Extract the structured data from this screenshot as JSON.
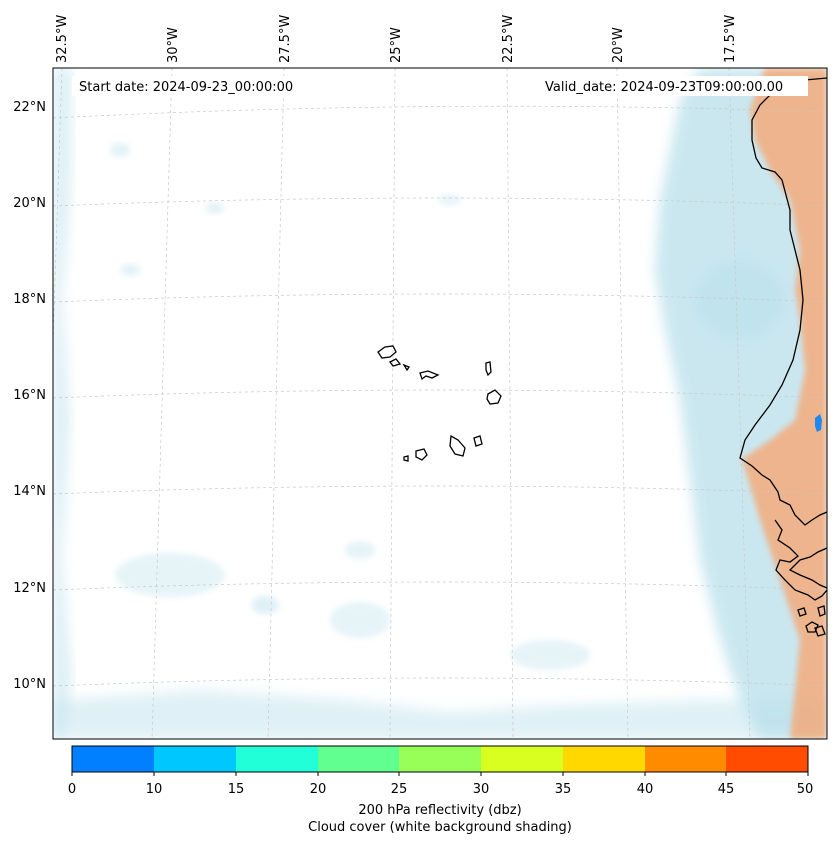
{
  "header": {
    "start_date": "Start date: 2024-09-23_00:00:00",
    "valid_date": "Valid_date: 2024-09-23T09:00:00.00"
  },
  "axes": {
    "longitude_labels": [
      "32.5°W",
      "30°W",
      "27.5°W",
      "25°W",
      "22.5°W",
      "20°W",
      "17.5°W"
    ],
    "latitude_labels": [
      "22°N",
      "20°N",
      "18°N",
      "16°N",
      "14°N",
      "12°N",
      "10°N"
    ]
  },
  "colorbar": {
    "ticks": [
      "0",
      "10",
      "15",
      "20",
      "25",
      "30",
      "35",
      "40",
      "45",
      "50"
    ],
    "colors": [
      "#0080ff",
      "#00c8ff",
      "#20ffd8",
      "#60ff90",
      "#98ff58",
      "#d8ff20",
      "#ffd800",
      "#ff8c00",
      "#ff4c00"
    ],
    "label_line1": "200 hPa reflectivity (dbz)",
    "label_line2": "Cloud cover (white background shading)"
  },
  "shading_colors": {
    "cloud": "#b9e0ec",
    "land_warm": "#f6a875",
    "echo": "#1e88f0",
    "coast": "#000000",
    "grid": "#c8c8c8"
  }
}
